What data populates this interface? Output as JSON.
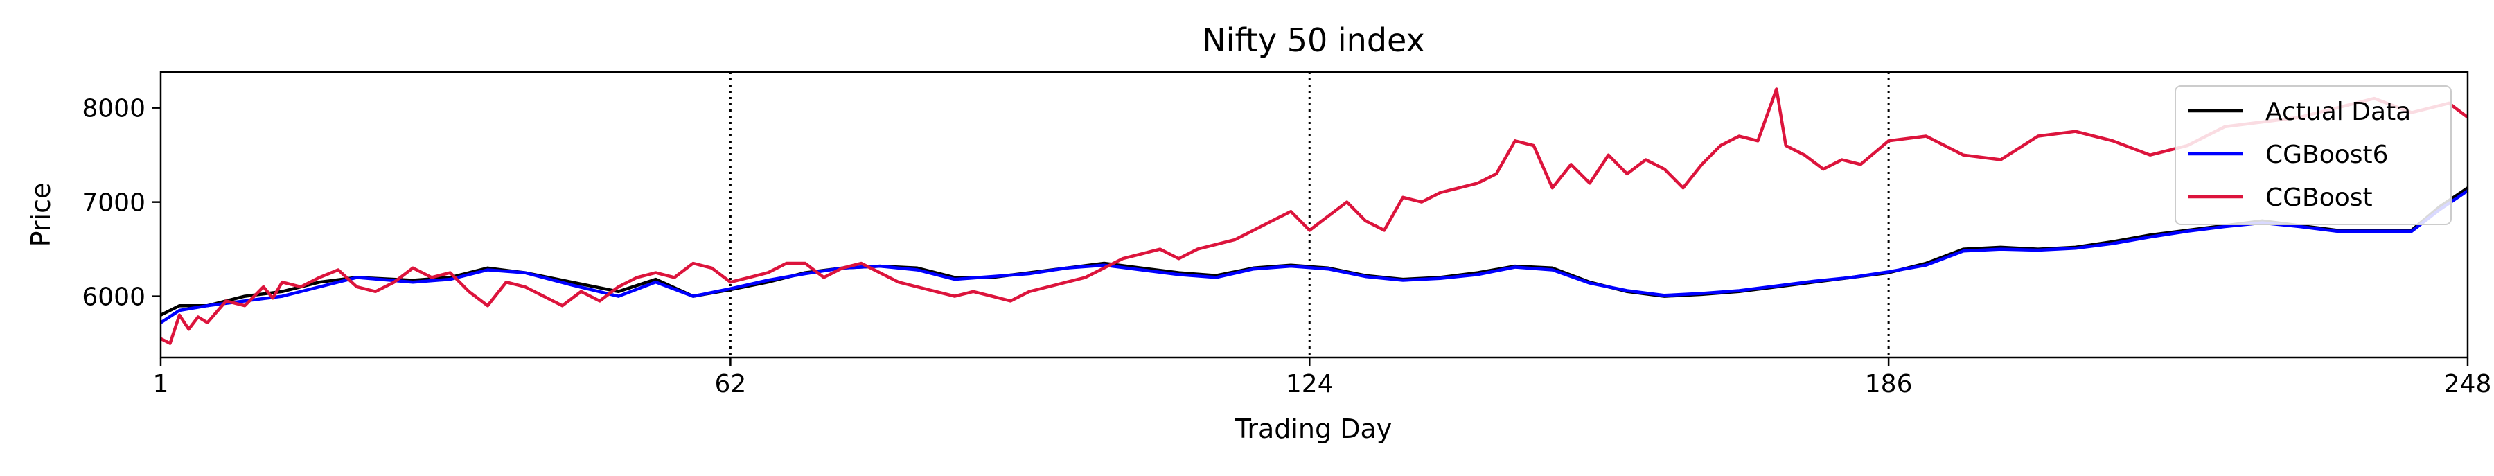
{
  "chart_data": {
    "type": "line",
    "title": "Nifty 50 index",
    "xlabel": "Trading Day",
    "ylabel": "Price",
    "xlim": [
      1,
      248
    ],
    "ylim": [
      5350,
      8380
    ],
    "x_ticks": [
      1,
      62,
      124,
      186,
      248
    ],
    "y_ticks": [
      6000,
      7000,
      8000
    ],
    "vlines": [
      62,
      124,
      186
    ],
    "legend_position": "top-right",
    "series": [
      {
        "name": "Actual Data",
        "color": "#000000",
        "keypoints": [
          [
            1,
            5800
          ],
          [
            3,
            5900
          ],
          [
            6,
            5900
          ],
          [
            10,
            6000
          ],
          [
            14,
            6050
          ],
          [
            18,
            6150
          ],
          [
            22,
            6200
          ],
          [
            28,
            6170
          ],
          [
            32,
            6200
          ],
          [
            36,
            6300
          ],
          [
            40,
            6250
          ],
          [
            45,
            6150
          ],
          [
            50,
            6050
          ],
          [
            54,
            6180
          ],
          [
            58,
            6000
          ],
          [
            62,
            6070
          ],
          [
            66,
            6150
          ],
          [
            70,
            6250
          ],
          [
            74,
            6300
          ],
          [
            78,
            6320
          ],
          [
            82,
            6300
          ],
          [
            86,
            6200
          ],
          [
            90,
            6200
          ],
          [
            94,
            6250
          ],
          [
            98,
            6300
          ],
          [
            102,
            6350
          ],
          [
            106,
            6300
          ],
          [
            110,
            6250
          ],
          [
            114,
            6220
          ],
          [
            118,
            6300
          ],
          [
            122,
            6330
          ],
          [
            126,
            6300
          ],
          [
            130,
            6220
          ],
          [
            134,
            6180
          ],
          [
            138,
            6200
          ],
          [
            142,
            6250
          ],
          [
            146,
            6320
          ],
          [
            150,
            6300
          ],
          [
            154,
            6150
          ],
          [
            158,
            6050
          ],
          [
            162,
            6000
          ],
          [
            166,
            6020
          ],
          [
            170,
            6050
          ],
          [
            174,
            6100
          ],
          [
            178,
            6150
          ],
          [
            182,
            6200
          ],
          [
            186,
            6250
          ],
          [
            190,
            6350
          ],
          [
            194,
            6500
          ],
          [
            198,
            6520
          ],
          [
            202,
            6500
          ],
          [
            206,
            6520
          ],
          [
            210,
            6580
          ],
          [
            214,
            6650
          ],
          [
            218,
            6700
          ],
          [
            222,
            6750
          ],
          [
            226,
            6800
          ],
          [
            230,
            6750
          ],
          [
            234,
            6700
          ],
          [
            238,
            6700
          ],
          [
            242,
            6700
          ],
          [
            245,
            6950
          ],
          [
            248,
            7150
          ]
        ]
      },
      {
        "name": "CGBoost6",
        "color": "#0000ff",
        "keypoints": [
          [
            1,
            5720
          ],
          [
            3,
            5850
          ],
          [
            6,
            5900
          ],
          [
            10,
            5950
          ],
          [
            14,
            6000
          ],
          [
            18,
            6100
          ],
          [
            22,
            6200
          ],
          [
            28,
            6150
          ],
          [
            32,
            6180
          ],
          [
            36,
            6280
          ],
          [
            40,
            6250
          ],
          [
            45,
            6120
          ],
          [
            50,
            6000
          ],
          [
            54,
            6150
          ],
          [
            58,
            6000
          ],
          [
            62,
            6080
          ],
          [
            66,
            6170
          ],
          [
            70,
            6240
          ],
          [
            74,
            6300
          ],
          [
            78,
            6320
          ],
          [
            82,
            6280
          ],
          [
            86,
            6180
          ],
          [
            90,
            6210
          ],
          [
            94,
            6240
          ],
          [
            98,
            6300
          ],
          [
            102,
            6330
          ],
          [
            106,
            6280
          ],
          [
            110,
            6230
          ],
          [
            114,
            6200
          ],
          [
            118,
            6290
          ],
          [
            122,
            6320
          ],
          [
            126,
            6290
          ],
          [
            130,
            6210
          ],
          [
            134,
            6170
          ],
          [
            138,
            6190
          ],
          [
            142,
            6230
          ],
          [
            146,
            6310
          ],
          [
            150,
            6280
          ],
          [
            154,
            6140
          ],
          [
            158,
            6060
          ],
          [
            162,
            6010
          ],
          [
            166,
            6030
          ],
          [
            170,
            6060
          ],
          [
            174,
            6110
          ],
          [
            178,
            6160
          ],
          [
            182,
            6200
          ],
          [
            186,
            6260
          ],
          [
            190,
            6330
          ],
          [
            194,
            6480
          ],
          [
            198,
            6500
          ],
          [
            202,
            6490
          ],
          [
            206,
            6510
          ],
          [
            210,
            6560
          ],
          [
            214,
            6630
          ],
          [
            218,
            6690
          ],
          [
            222,
            6740
          ],
          [
            226,
            6780
          ],
          [
            230,
            6740
          ],
          [
            234,
            6690
          ],
          [
            238,
            6690
          ],
          [
            242,
            6690
          ],
          [
            245,
            6920
          ],
          [
            248,
            7120
          ]
        ]
      },
      {
        "name": "CGBoost",
        "color": "#dc143c",
        "keypoints": [
          [
            1,
            5550
          ],
          [
            2,
            5500
          ],
          [
            3,
            5800
          ],
          [
            4,
            5650
          ],
          [
            5,
            5780
          ],
          [
            6,
            5720
          ],
          [
            8,
            5950
          ],
          [
            10,
            5900
          ],
          [
            12,
            6100
          ],
          [
            13,
            5980
          ],
          [
            14,
            6150
          ],
          [
            16,
            6100
          ],
          [
            18,
            6200
          ],
          [
            20,
            6280
          ],
          [
            22,
            6100
          ],
          [
            24,
            6050
          ],
          [
            26,
            6150
          ],
          [
            28,
            6300
          ],
          [
            30,
            6200
          ],
          [
            32,
            6250
          ],
          [
            34,
            6050
          ],
          [
            36,
            5900
          ],
          [
            38,
            6150
          ],
          [
            40,
            6100
          ],
          [
            42,
            6000
          ],
          [
            44,
            5900
          ],
          [
            46,
            6050
          ],
          [
            48,
            5950
          ],
          [
            50,
            6100
          ],
          [
            52,
            6200
          ],
          [
            54,
            6250
          ],
          [
            56,
            6200
          ],
          [
            58,
            6350
          ],
          [
            60,
            6300
          ],
          [
            62,
            6150
          ],
          [
            64,
            6200
          ],
          [
            66,
            6250
          ],
          [
            68,
            6350
          ],
          [
            70,
            6350
          ],
          [
            72,
            6200
          ],
          [
            74,
            6300
          ],
          [
            76,
            6350
          ],
          [
            78,
            6250
          ],
          [
            80,
            6150
          ],
          [
            82,
            6100
          ],
          [
            84,
            6050
          ],
          [
            86,
            6000
          ],
          [
            88,
            6050
          ],
          [
            90,
            6000
          ],
          [
            92,
            5950
          ],
          [
            94,
            6050
          ],
          [
            96,
            6100
          ],
          [
            98,
            6150
          ],
          [
            100,
            6200
          ],
          [
            102,
            6300
          ],
          [
            104,
            6400
          ],
          [
            106,
            6450
          ],
          [
            108,
            6500
          ],
          [
            110,
            6400
          ],
          [
            112,
            6500
          ],
          [
            114,
            6550
          ],
          [
            116,
            6600
          ],
          [
            118,
            6700
          ],
          [
            120,
            6800
          ],
          [
            122,
            6900
          ],
          [
            124,
            6700
          ],
          [
            126,
            6850
          ],
          [
            128,
            7000
          ],
          [
            130,
            6800
          ],
          [
            132,
            6700
          ],
          [
            134,
            7050
          ],
          [
            136,
            7000
          ],
          [
            138,
            7100
          ],
          [
            140,
            7150
          ],
          [
            142,
            7200
          ],
          [
            144,
            7300
          ],
          [
            146,
            7650
          ],
          [
            148,
            7600
          ],
          [
            150,
            7150
          ],
          [
            152,
            7400
          ],
          [
            154,
            7200
          ],
          [
            156,
            7500
          ],
          [
            158,
            7300
          ],
          [
            160,
            7450
          ],
          [
            162,
            7350
          ],
          [
            164,
            7150
          ],
          [
            166,
            7400
          ],
          [
            168,
            7600
          ],
          [
            170,
            7700
          ],
          [
            172,
            7650
          ],
          [
            174,
            8200
          ],
          [
            175,
            7600
          ],
          [
            177,
            7500
          ],
          [
            179,
            7350
          ],
          [
            181,
            7450
          ],
          [
            183,
            7400
          ],
          [
            186,
            7650
          ],
          [
            190,
            7700
          ],
          [
            194,
            7500
          ],
          [
            198,
            7450
          ],
          [
            202,
            7700
          ],
          [
            206,
            7750
          ],
          [
            210,
            7650
          ],
          [
            214,
            7500
          ],
          [
            218,
            7600
          ],
          [
            222,
            7800
          ],
          [
            226,
            7850
          ],
          [
            230,
            7900
          ],
          [
            234,
            8000
          ],
          [
            238,
            8100
          ],
          [
            242,
            7950
          ],
          [
            246,
            8050
          ],
          [
            248,
            7900
          ]
        ]
      }
    ]
  }
}
